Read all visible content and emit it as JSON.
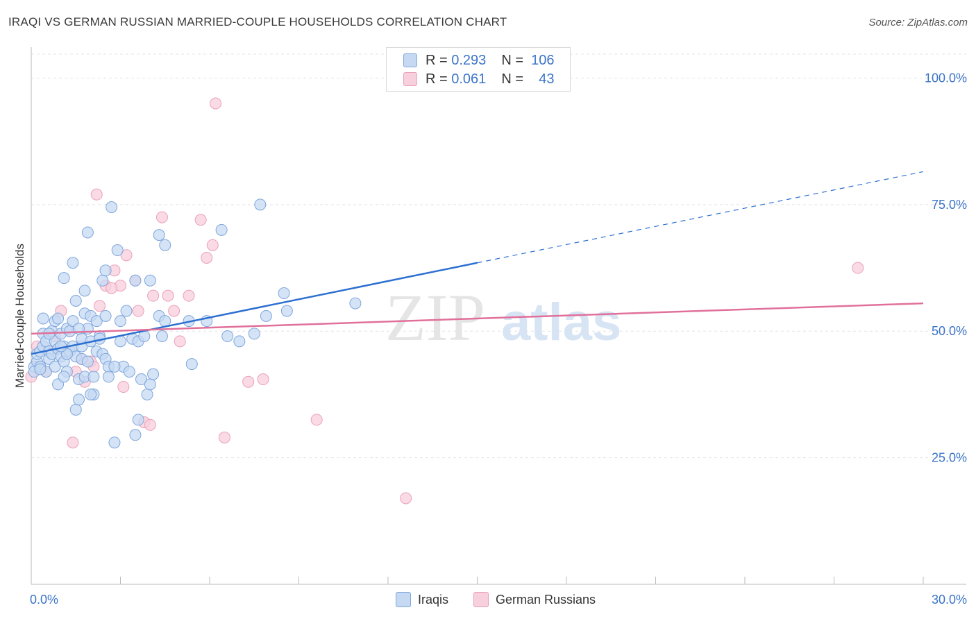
{
  "title": "IRAQI VS GERMAN RUSSIAN MARRIED-COUPLE HOUSEHOLDS CORRELATION CHART",
  "source": "Source: ZipAtlas.com",
  "watermark": {
    "zip": "ZIP",
    "atlas": "atlas"
  },
  "stats": {
    "row1": {
      "r_label": "R =",
      "r_value": "0.293",
      "n_label": "N =",
      "n_value": "106"
    },
    "row2": {
      "r_label": "R =",
      "r_value": "0.061",
      "n_label": "N =",
      "n_value": "43"
    }
  },
  "legend": {
    "iraqis": "Iraqis",
    "german_russians": "German Russians"
  },
  "colors": {
    "iraqis_fill": "#c5d9f3",
    "iraqis_stroke": "#7ea6dc",
    "iraqis_line": "#2c6fd1",
    "german_fill": "#f8cfdc",
    "german_stroke": "#eaa0b8",
    "german_line": "#e0709a",
    "grid": "#e3e3e3",
    "axis_label": "#3b74c9"
  },
  "chart_data": {
    "type": "scatter",
    "title": "IRAQI VS GERMAN RUSSIAN MARRIED-COUPLE HOUSEHOLDS CORRELATION CHART",
    "xlabel": "",
    "ylabel": "Married-couple Households",
    "xlim": [
      0,
      30
    ],
    "ylim": [
      0,
      105
    ],
    "x_tick_labels": [
      "0.0%",
      "30.0%"
    ],
    "y_ticks": [
      25,
      50,
      75,
      100
    ],
    "y_tick_labels": [
      "25.0%",
      "50.0%",
      "75.0%",
      "100.0%"
    ],
    "grid": true,
    "legend_position": "bottom-center",
    "series": [
      {
        "name": "Iraqis",
        "r": 0.293,
        "n": 106,
        "trend": {
          "x_start": 0,
          "y_start": 45.5,
          "x_solid_end": 15,
          "y_solid_end": 63.5,
          "x_end": 30,
          "y_end": 81.5
        },
        "points": [
          [
            0.1,
            43
          ],
          [
            0.1,
            42
          ],
          [
            0.2,
            44
          ],
          [
            0.2,
            45.5
          ],
          [
            0.3,
            43
          ],
          [
            0.3,
            46
          ],
          [
            0.4,
            47
          ],
          [
            0.4,
            49.5
          ],
          [
            0.4,
            52.5
          ],
          [
            0.5,
            42
          ],
          [
            0.5,
            48
          ],
          [
            0.6,
            46
          ],
          [
            0.6,
            44.5
          ],
          [
            0.7,
            50
          ],
          [
            0.7,
            45.5
          ],
          [
            0.8,
            48
          ],
          [
            0.8,
            52
          ],
          [
            0.8,
            43
          ],
          [
            0.9,
            46.5
          ],
          [
            0.9,
            39.5
          ],
          [
            1.0,
            49.5
          ],
          [
            1.0,
            45
          ],
          [
            1.1,
            47
          ],
          [
            1.1,
            60.5
          ],
          [
            1.1,
            44
          ],
          [
            1.2,
            50.5
          ],
          [
            1.2,
            42
          ],
          [
            1.3,
            46
          ],
          [
            1.3,
            50
          ],
          [
            1.4,
            52
          ],
          [
            1.4,
            47
          ],
          [
            1.4,
            63.5
          ],
          [
            1.5,
            45
          ],
          [
            1.5,
            56
          ],
          [
            1.5,
            34.5
          ],
          [
            1.6,
            36.5
          ],
          [
            1.6,
            40.5
          ],
          [
            1.7,
            44.5
          ],
          [
            1.7,
            47
          ],
          [
            1.7,
            48.5
          ],
          [
            1.8,
            41
          ],
          [
            1.8,
            53.5
          ],
          [
            1.8,
            58
          ],
          [
            1.9,
            50.5
          ],
          [
            1.9,
            44
          ],
          [
            1.9,
            69.5
          ],
          [
            2.0,
            48
          ],
          [
            2.0,
            53
          ],
          [
            2.1,
            37.5
          ],
          [
            2.1,
            41
          ],
          [
            2.2,
            52
          ],
          [
            2.2,
            46
          ],
          [
            2.3,
            49
          ],
          [
            2.3,
            48.5
          ],
          [
            2.4,
            60
          ],
          [
            2.4,
            45.5
          ],
          [
            2.5,
            53
          ],
          [
            2.5,
            44.5
          ],
          [
            2.5,
            62
          ],
          [
            2.6,
            43
          ],
          [
            2.6,
            41
          ],
          [
            2.7,
            74.5
          ],
          [
            2.8,
            28
          ],
          [
            2.9,
            66
          ],
          [
            3.0,
            52
          ],
          [
            3.0,
            48
          ],
          [
            3.1,
            43
          ],
          [
            3.2,
            54
          ],
          [
            3.3,
            42
          ],
          [
            3.4,
            48.5
          ],
          [
            3.5,
            60
          ],
          [
            3.5,
            29.5
          ],
          [
            3.6,
            48
          ],
          [
            3.6,
            32.5
          ],
          [
            3.7,
            40.5
          ],
          [
            3.9,
            37.5
          ],
          [
            4.0,
            39.5
          ],
          [
            4.0,
            60
          ],
          [
            4.1,
            41.5
          ],
          [
            4.3,
            53
          ],
          [
            4.3,
            69
          ],
          [
            4.4,
            49
          ],
          [
            4.5,
            52
          ],
          [
            4.5,
            67
          ],
          [
            5.3,
            52
          ],
          [
            5.4,
            43.5
          ],
          [
            5.9,
            52
          ],
          [
            6.4,
            70
          ],
          [
            6.6,
            49
          ],
          [
            7.0,
            48
          ],
          [
            7.5,
            49.5
          ],
          [
            7.7,
            75
          ],
          [
            7.9,
            53
          ],
          [
            8.5,
            57.5
          ],
          [
            8.6,
            54
          ],
          [
            10.9,
            55.5
          ],
          [
            1.2,
            45.5
          ],
          [
            0.6,
            49.5
          ],
          [
            2.0,
            37.5
          ],
          [
            1.0,
            47
          ],
          [
            0.3,
            42.5
          ],
          [
            1.6,
            50.5
          ],
          [
            2.8,
            43
          ],
          [
            3.8,
            49
          ],
          [
            1.1,
            41
          ],
          [
            0.9,
            52.5
          ]
        ]
      },
      {
        "name": "German Russians",
        "r": 0.061,
        "n": 43,
        "trend": {
          "x_start": 0,
          "y_start": 49.5,
          "x_end": 30,
          "y_end": 55.5
        },
        "points": [
          [
            0.0,
            41
          ],
          [
            0.2,
            47
          ],
          [
            0.3,
            43
          ],
          [
            0.5,
            42
          ],
          [
            0.8,
            49
          ],
          [
            1.0,
            54
          ],
          [
            1.2,
            46
          ],
          [
            1.3,
            50
          ],
          [
            1.4,
            28
          ],
          [
            1.5,
            42
          ],
          [
            1.8,
            40
          ],
          [
            2.0,
            44
          ],
          [
            2.1,
            43
          ],
          [
            2.2,
            77
          ],
          [
            2.3,
            55
          ],
          [
            2.5,
            59
          ],
          [
            2.8,
            62
          ],
          [
            3.0,
            59
          ],
          [
            3.1,
            39
          ],
          [
            3.2,
            65
          ],
          [
            3.5,
            60
          ],
          [
            3.6,
            54
          ],
          [
            3.8,
            32
          ],
          [
            4.0,
            31.5
          ],
          [
            4.1,
            57
          ],
          [
            4.4,
            72.5
          ],
          [
            4.6,
            57
          ],
          [
            4.8,
            54
          ],
          [
            5.0,
            48
          ],
          [
            5.3,
            57
          ],
          [
            5.7,
            72
          ],
          [
            5.9,
            64.5
          ],
          [
            6.1,
            67
          ],
          [
            6.2,
            95
          ],
          [
            6.5,
            29
          ],
          [
            7.3,
            40
          ],
          [
            7.8,
            40.5
          ],
          [
            9.6,
            32.5
          ],
          [
            12.6,
            17
          ],
          [
            27.8,
            62.5
          ],
          [
            1.7,
            44.5
          ],
          [
            0.6,
            46
          ],
          [
            2.7,
            58.5
          ]
        ]
      }
    ]
  }
}
